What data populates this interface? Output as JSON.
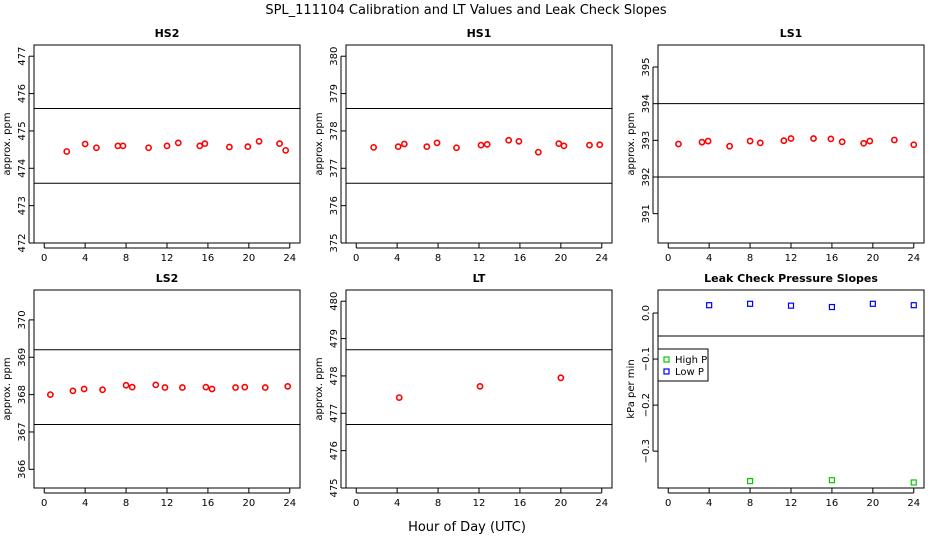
{
  "title": "SPL_111104  Calibration and LT Values and Leak Check Slopes",
  "xlabel": "Hour of Day (UTC)",
  "chart_data": [
    {
      "type": "scatter",
      "title": "HS2",
      "ylabel": "approx. ppm",
      "xlim": [
        -1,
        25
      ],
      "ylim": [
        472,
        477.3
      ],
      "xticks": [
        0,
        4,
        8,
        12,
        16,
        20,
        24
      ],
      "yticks": [
        472,
        473,
        474,
        475,
        476,
        477
      ],
      "hlines": [
        473.6,
        475.6
      ],
      "series": [
        {
          "color": "#ff0000",
          "marker": "circle",
          "x": [
            2.2,
            4.0,
            5.1,
            7.2,
            7.7,
            10.2,
            12.0,
            13.1,
            15.2,
            15.7,
            18.1,
            19.9,
            21.0,
            23.0,
            23.6
          ],
          "y": [
            474.45,
            474.65,
            474.55,
            474.6,
            474.6,
            474.55,
            474.6,
            474.68,
            474.6,
            474.66,
            474.57,
            474.58,
            474.72,
            474.66,
            474.48
          ]
        }
      ]
    },
    {
      "type": "scatter",
      "title": "HS1",
      "ylabel": "approx. ppm",
      "xlim": [
        -1,
        25
      ],
      "ylim": [
        375,
        380.3
      ],
      "xticks": [
        0,
        4,
        8,
        12,
        16,
        20,
        24
      ],
      "yticks": [
        375,
        376,
        377,
        378,
        379,
        380
      ],
      "hlines": [
        376.6,
        378.6
      ],
      "series": [
        {
          "color": "#ff0000",
          "marker": "circle",
          "x": [
            1.7,
            4.1,
            4.7,
            6.9,
            7.9,
            9.8,
            12.2,
            12.8,
            14.9,
            15.9,
            17.8,
            19.8,
            20.3,
            22.8,
            23.8
          ],
          "y": [
            377.56,
            377.58,
            377.65,
            377.58,
            377.68,
            377.55,
            377.62,
            377.64,
            377.75,
            377.72,
            377.43,
            377.66,
            377.6,
            377.62,
            377.63
          ]
        }
      ]
    },
    {
      "type": "scatter",
      "title": "LS1",
      "ylabel": "approx. ppm",
      "xlim": [
        -1,
        25
      ],
      "ylim": [
        390.2,
        395.6
      ],
      "xticks": [
        0,
        4,
        8,
        12,
        16,
        20,
        24
      ],
      "yticks": [
        391,
        392,
        393,
        394,
        395
      ],
      "hlines": [
        392,
        394
      ],
      "series": [
        {
          "color": "#ff0000",
          "marker": "circle",
          "x": [
            1.0,
            3.3,
            3.9,
            6.0,
            8.0,
            9.0,
            11.3,
            12.0,
            14.2,
            15.9,
            17.0,
            19.1,
            19.7,
            22.1,
            24.0
          ],
          "y": [
            392.9,
            392.95,
            392.98,
            392.84,
            392.98,
            392.93,
            392.99,
            393.05,
            393.05,
            393.04,
            392.96,
            392.92,
            392.98,
            393.01,
            392.88
          ]
        }
      ]
    },
    {
      "type": "scatter",
      "title": "LS2",
      "ylabel": "approx. ppm",
      "xlim": [
        -1,
        25
      ],
      "ylim": [
        365.5,
        370.8
      ],
      "xticks": [
        0,
        4,
        8,
        12,
        16,
        20,
        24
      ],
      "yticks": [
        366,
        367,
        368,
        369,
        370
      ],
      "hlines": [
        367.2,
        369.2
      ],
      "series": [
        {
          "color": "#ff0000",
          "marker": "circle",
          "x": [
            0.6,
            2.8,
            3.9,
            5.7,
            8.0,
            8.6,
            10.9,
            11.8,
            13.5,
            15.8,
            16.4,
            18.7,
            19.6,
            21.6,
            23.8
          ],
          "y": [
            368.0,
            368.1,
            368.15,
            368.13,
            368.25,
            368.2,
            368.26,
            368.19,
            368.19,
            368.2,
            368.15,
            368.19,
            368.2,
            368.19,
            368.22
          ]
        }
      ]
    },
    {
      "type": "scatter",
      "title": "LT",
      "ylabel": "approx. ppm",
      "xlim": [
        -1,
        25
      ],
      "ylim": [
        475,
        480.3
      ],
      "xticks": [
        0,
        4,
        8,
        12,
        16,
        20,
        24
      ],
      "yticks": [
        475,
        476,
        477,
        478,
        479,
        480
      ],
      "hlines": [
        476.7,
        478.7
      ],
      "series": [
        {
          "color": "#ff0000",
          "marker": "circle",
          "x": [
            4.2,
            12.1,
            20.0
          ],
          "y": [
            477.42,
            477.72,
            477.95
          ]
        }
      ]
    },
    {
      "type": "scatter",
      "title": "Leak Check Pressure Slopes",
      "ylabel": "kPa per min",
      "xlim": [
        -1,
        25
      ],
      "ylim": [
        -0.38,
        0.05
      ],
      "xticks": [
        0,
        4,
        8,
        12,
        16,
        20,
        24
      ],
      "yticks": [
        -0.3,
        -0.2,
        -0.1,
        0.0
      ],
      "ytick_labels": [
        "−0.3",
        "−0.2",
        "−0.1",
        "0.0"
      ],
      "hlines": [
        -0.05,
        0.05
      ],
      "legend": {
        "position": "left",
        "entries": [
          "High P",
          "Low P"
        ]
      },
      "series": [
        {
          "name": "High P",
          "color": "#00cc00",
          "marker": "square",
          "x": [
            8.0,
            16.0,
            24.0
          ],
          "y": [
            -0.365,
            -0.363,
            -0.368
          ]
        },
        {
          "name": "Low P",
          "color": "#0000ff",
          "marker": "square",
          "x": [
            4.0,
            8.0,
            12.0,
            16.0,
            20.0,
            24.0
          ],
          "y": [
            0.017,
            0.02,
            0.016,
            0.013,
            0.02,
            0.017
          ]
        }
      ]
    }
  ]
}
